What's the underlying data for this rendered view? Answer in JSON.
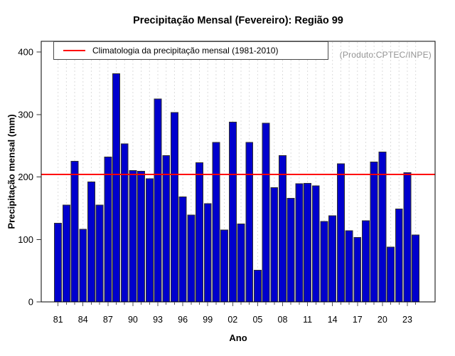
{
  "watermark": "(Produto:CPTEC/INPE)",
  "legend": {
    "label": "Climatologia da precipitação mensal (1981-2010)"
  },
  "colors": {
    "bar": "#0000CD",
    "bar_border": "#303030",
    "climatology_line": "#FF0000",
    "grid": "#DCDCDC",
    "axis": "#000000",
    "watermark_text": "#949494"
  },
  "chart_data": {
    "type": "bar",
    "title": "Precipitação Mensal (Fevereiro): Região 99",
    "xlabel": "Ano",
    "ylabel": "Precipitação mensal (mm)",
    "ylim": [
      0,
      417
    ],
    "yticks": [
      0,
      100,
      200,
      300,
      400
    ],
    "grid": "vertical-dashed",
    "legend_position": "topleft",
    "x": [
      1981,
      1982,
      1983,
      1984,
      1985,
      1986,
      1987,
      1988,
      1989,
      1990,
      1991,
      1992,
      1993,
      1994,
      1995,
      1996,
      1997,
      1998,
      1999,
      2000,
      2001,
      2002,
      2003,
      2004,
      2005,
      2006,
      2007,
      2008,
      2009,
      2010,
      2011,
      2012,
      2013,
      2014,
      2015,
      2016,
      2017,
      2018,
      2019,
      2020,
      2021,
      2022,
      2023,
      2024
    ],
    "xtick_labels": [
      "81",
      "84",
      "87",
      "90",
      "93",
      "96",
      "99",
      "02",
      "05",
      "08",
      "11",
      "14",
      "17",
      "20",
      "23"
    ],
    "values": [
      126,
      155,
      225,
      116,
      192,
      155,
      232,
      365,
      253,
      210,
      209,
      197,
      325,
      234,
      303,
      168,
      139,
      223,
      157,
      255,
      115,
      288,
      125,
      255,
      51,
      286,
      183,
      234,
      166,
      189,
      190,
      186,
      129,
      138,
      221,
      114,
      103,
      130,
      224,
      240,
      88,
      149,
      207,
      107
    ],
    "climatology": {
      "label": "Climatologia da precipitação mensal (1981-2010)",
      "value": 204
    }
  }
}
